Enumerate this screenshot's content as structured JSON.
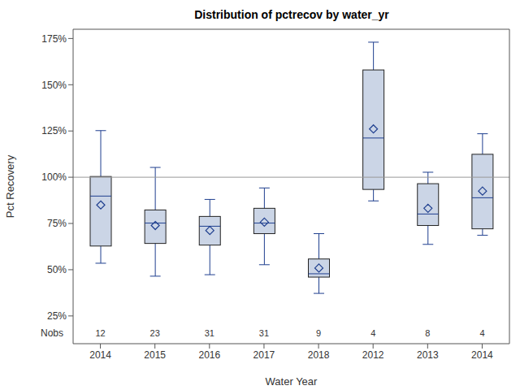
{
  "chart_data": {
    "type": "box",
    "title": "Distribution of pctrecov by water_yr",
    "x_label": "Water Year",
    "y_label": "Pct Recovery",
    "categories": [
      "2014",
      "2015",
      "2016",
      "2017",
      "2018",
      "2012",
      "2013",
      "2014"
    ],
    "min": [
      53.5,
      46.5,
      47.3,
      52.7,
      37.2,
      87.2,
      63.7,
      68.6
    ],
    "q1": [
      62.8,
      64.2,
      63.3,
      69.5,
      46.0,
      93.4,
      73.9,
      72.1
    ],
    "median": [
      89.8,
      75.2,
      73.5,
      75.2,
      47.8,
      121.2,
      80.1,
      88.9
    ],
    "q3": [
      100.4,
      82.3,
      78.8,
      83.2,
      55.8,
      158.0,
      96.5,
      112.4
    ],
    "max": [
      125.2,
      105.3,
      88.0,
      94.2,
      69.5,
      173.0,
      102.7,
      123.5
    ],
    "mean": [
      85.0,
      73.9,
      71.2,
      75.7,
      50.9,
      126.1,
      83.2,
      92.5
    ],
    "nobs": [
      12,
      23,
      31,
      31,
      9,
      4,
      8,
      4
    ],
    "nobs_label": "Nobs",
    "reference_line": 100,
    "ylim": [
      10,
      180
    ],
    "yticks": [
      {
        "value": 25,
        "label": "25%"
      },
      {
        "value": 50,
        "label": "50%"
      },
      {
        "value": 75,
        "label": "75%"
      },
      {
        "value": 100,
        "label": "100%"
      },
      {
        "value": 125,
        "label": "125%"
      },
      {
        "value": 150,
        "label": "150%"
      },
      {
        "value": 175,
        "label": "175%"
      }
    ],
    "color": "#1f3f8f"
  }
}
